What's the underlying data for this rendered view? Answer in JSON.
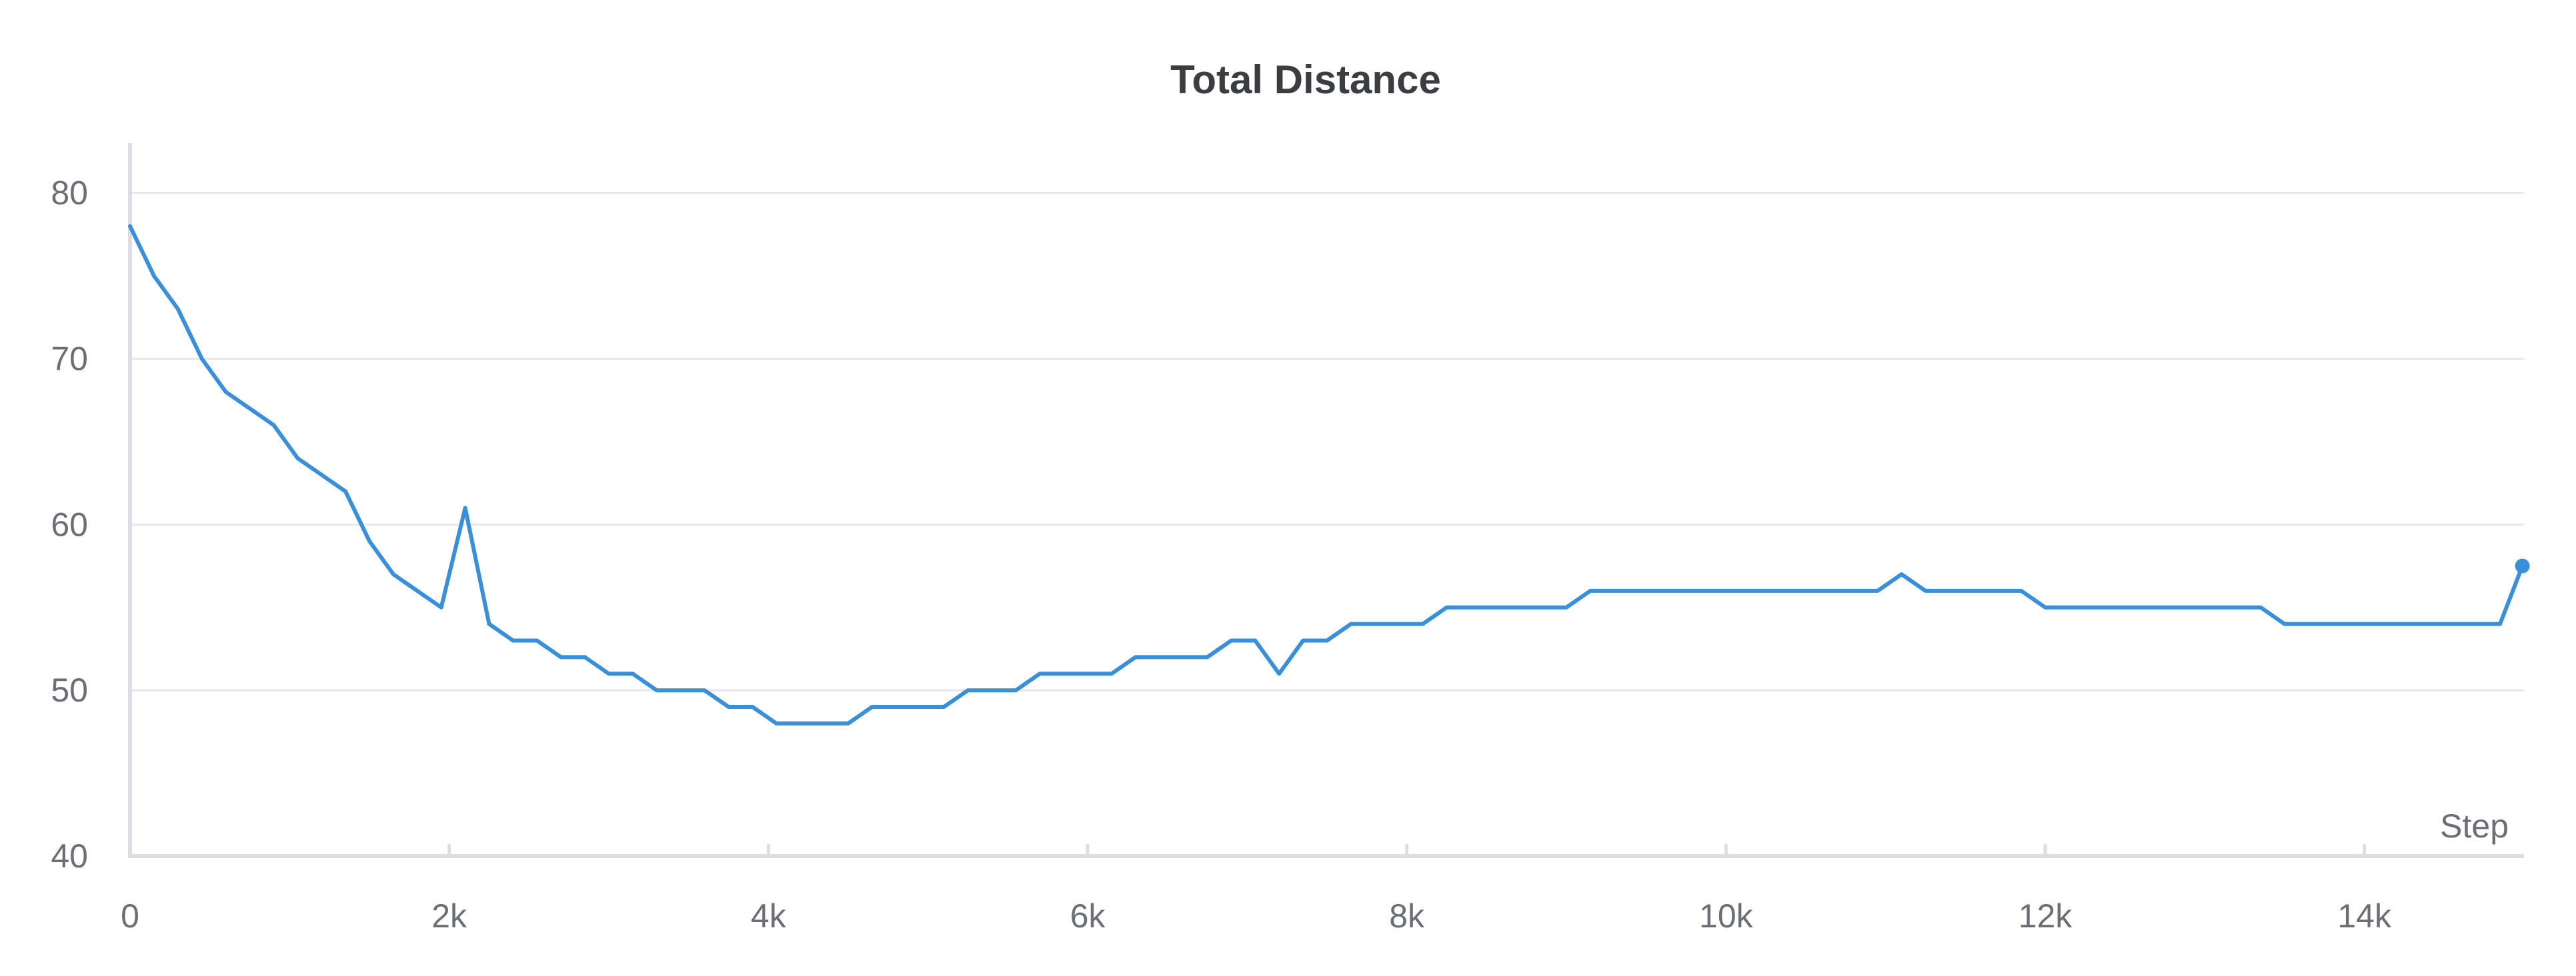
{
  "chart_data": {
    "type": "line",
    "title": "Total Distance",
    "xlabel": "Step",
    "ylabel": "",
    "xlim": [
      0,
      15000
    ],
    "ylim": [
      40,
      83
    ],
    "xticks": [
      0,
      2000,
      4000,
      6000,
      8000,
      10000,
      12000,
      14000
    ],
    "xtick_labels": [
      "0",
      "2k",
      "4k",
      "6k",
      "8k",
      "10k",
      "12k",
      "14k"
    ],
    "yticks": [
      40,
      50,
      60,
      70,
      80
    ],
    "ytick_labels": [
      "40",
      "50",
      "60",
      "70",
      "80"
    ],
    "grid": true,
    "legend": "none",
    "series": [
      {
        "color": "#3a8fd9",
        "end_marker": true,
        "x": [
          0,
          150,
          300,
          450,
          600,
          750,
          900,
          1050,
          1200,
          1350,
          1500,
          1650,
          1800,
          1950,
          2100,
          2250,
          2400,
          2550,
          2700,
          2850,
          3000,
          3150,
          3300,
          3450,
          3600,
          3750,
          3900,
          4050,
          4200,
          4350,
          4500,
          4650,
          4800,
          4950,
          5100,
          5250,
          5400,
          5550,
          5700,
          5850,
          6000,
          6150,
          6300,
          6450,
          6600,
          6750,
          6900,
          7050,
          7200,
          7350,
          7500,
          7650,
          7800,
          7950,
          8100,
          8250,
          8400,
          8550,
          8700,
          8850,
          9000,
          9150,
          9300,
          9450,
          9600,
          9750,
          9900,
          10050,
          10200,
          10350,
          10500,
          10650,
          10800,
          10950,
          11100,
          11250,
          11400,
          11550,
          11700,
          11850,
          12000,
          12150,
          12300,
          12450,
          12600,
          12750,
          12900,
          13050,
          13200,
          13350,
          13500,
          13650,
          13800,
          13950,
          14100,
          14250,
          14400,
          14550,
          14700,
          14850,
          14990
        ],
        "y": [
          78,
          75,
          73,
          70,
          68,
          67,
          66,
          64,
          63,
          62,
          59,
          57,
          56,
          55,
          61,
          54,
          53,
          53,
          52,
          52,
          51,
          51,
          50,
          50,
          50,
          49,
          49,
          48,
          48,
          48,
          48,
          49,
          49,
          49,
          49,
          50,
          50,
          50,
          51,
          51,
          51,
          51,
          52,
          52,
          52,
          52,
          53,
          53,
          51,
          53,
          53,
          54,
          54,
          54,
          54,
          55,
          55,
          55,
          55,
          55,
          55,
          56,
          56,
          56,
          56,
          56,
          56,
          56,
          56,
          56,
          56,
          56,
          56,
          56,
          57,
          56,
          56,
          56,
          56,
          56,
          55,
          55,
          55,
          55,
          55,
          55,
          55,
          55,
          55,
          55,
          54,
          54,
          54,
          54,
          54,
          54,
          54,
          54,
          54,
          54,
          57.5
        ]
      }
    ]
  }
}
